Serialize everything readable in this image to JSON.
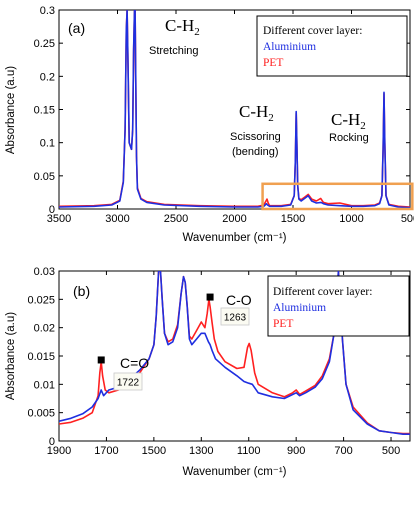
{
  "colors": {
    "aluminium": "#1f2fe0",
    "pet": "#ff2020",
    "highlight": "#f0a050",
    "axis": "#000000"
  },
  "chart_data": [
    {
      "panel": "(a)",
      "type": "line",
      "xlabel": "Wavenumber (cm⁻¹)",
      "ylabel": "Absorbance (a.u)",
      "x_reversed": true,
      "xlim": [
        3500,
        500
      ],
      "ylim": [
        0,
        0.3
      ],
      "xticks": [
        3500,
        3000,
        2500,
        2000,
        1500,
        1000,
        500
      ],
      "xtick_labels": [
        "3500",
        "3000",
        "2500",
        "2000",
        "1500",
        "1000",
        "500"
      ],
      "yticks": [
        0,
        0.05,
        0.1,
        0.15,
        0.2,
        0.25,
        0.3
      ],
      "ytick_labels": [
        "0",
        "0.05",
        "0.1",
        "0.15",
        "0.2",
        "0.25",
        "0.3"
      ],
      "legend": {
        "title": "Different cover layer:",
        "position": "top-right"
      },
      "series": [
        {
          "name": "Aluminium",
          "color": "#1f2fe0",
          "x": [
            3500,
            3200,
            3050,
            2980,
            2950,
            2935,
            2925,
            2918,
            2910,
            2900,
            2880,
            2870,
            2862,
            2855,
            2850,
            2845,
            2838,
            2830,
            2800,
            2750,
            2600,
            2300,
            2000,
            1800,
            1750,
            1738,
            1728,
            1718,
            1700,
            1600,
            1520,
            1490,
            1480,
            1473,
            1466,
            1460,
            1450,
            1430,
            1400,
            1370,
            1340,
            1300,
            1260,
            1240,
            1200,
            1100,
            1000,
            900,
            800,
            760,
            740,
            730,
            722,
            715,
            705,
            680,
            600,
            500
          ],
          "y": [
            0.003,
            0.004,
            0.006,
            0.012,
            0.04,
            0.12,
            0.27,
            0.3,
            0.22,
            0.1,
            0.09,
            0.12,
            0.24,
            0.3,
            0.3,
            0.22,
            0.08,
            0.03,
            0.015,
            0.01,
            0.006,
            0.004,
            0.003,
            0.003,
            0.004,
            0.006,
            0.008,
            0.006,
            0.004,
            0.004,
            0.006,
            0.02,
            0.07,
            0.147,
            0.09,
            0.035,
            0.015,
            0.012,
            0.016,
            0.02,
            0.012,
            0.009,
            0.01,
            0.008,
            0.006,
            0.005,
            0.004,
            0.004,
            0.005,
            0.008,
            0.02,
            0.09,
            0.176,
            0.1,
            0.02,
            0.006,
            0.003,
            0.002
          ]
        },
        {
          "name": "PET",
          "color": "#ff2020",
          "x": [
            3500,
            3200,
            3050,
            2980,
            2950,
            2935,
            2925,
            2918,
            2910,
            2900,
            2880,
            2870,
            2862,
            2855,
            2850,
            2845,
            2838,
            2830,
            2800,
            2750,
            2600,
            2300,
            2000,
            1800,
            1750,
            1738,
            1722,
            1712,
            1700,
            1600,
            1520,
            1490,
            1480,
            1473,
            1466,
            1460,
            1450,
            1430,
            1400,
            1370,
            1340,
            1300,
            1263,
            1240,
            1200,
            1100,
            1000,
            900,
            800,
            760,
            740,
            730,
            722,
            715,
            705,
            680,
            600,
            500
          ],
          "y": [
            0.004,
            0.005,
            0.007,
            0.013,
            0.042,
            0.12,
            0.27,
            0.3,
            0.22,
            0.1,
            0.09,
            0.12,
            0.235,
            0.3,
            0.3,
            0.22,
            0.08,
            0.032,
            0.016,
            0.011,
            0.007,
            0.005,
            0.004,
            0.004,
            0.006,
            0.01,
            0.015,
            0.009,
            0.005,
            0.005,
            0.007,
            0.02,
            0.07,
            0.145,
            0.09,
            0.036,
            0.016,
            0.014,
            0.018,
            0.022,
            0.015,
            0.012,
            0.016,
            0.01,
            0.008,
            0.009,
            0.005,
            0.005,
            0.006,
            0.009,
            0.02,
            0.09,
            0.174,
            0.1,
            0.02,
            0.007,
            0.004,
            0.003
          ]
        }
      ],
      "annotations": {
        "stretch_title": "C-H",
        "stretch_sub": "2",
        "stretch_label": "Stretching",
        "scissor_title": "C-H",
        "scissor_sub": "2",
        "scissor_label1": "Scissoring",
        "scissor_label2": "(bending)",
        "rock_title": "C-H",
        "rock_sub": "2",
        "rock_label": "Rocking",
        "highlight_box_x": [
          1760,
          480
        ],
        "highlight_box_y": [
          0,
          0.038
        ]
      }
    },
    {
      "panel": "(b)",
      "type": "line",
      "xlabel": "Wavenumber (cm⁻¹)",
      "ylabel": "Absorbance (a.u)",
      "x_reversed": true,
      "xlim": [
        1900,
        420
      ],
      "ylim": [
        0,
        0.03
      ],
      "xticks": [
        1900,
        1700,
        1500,
        1300,
        1100,
        900,
        700,
        500
      ],
      "xtick_labels": [
        "1900",
        "1700",
        "1500",
        "1300",
        "1100",
        "900",
        "700",
        "500"
      ],
      "yticks": [
        0,
        0.005,
        0.01,
        0.015,
        0.02,
        0.025,
        0.03
      ],
      "ytick_labels": [
        "0",
        "0.005",
        "0.01",
        "0.015",
        "0.02",
        "0.025",
        "0.03"
      ],
      "legend": {
        "title": "Different cover layer:",
        "position": "top-right"
      },
      "series": [
        {
          "name": "Aluminium",
          "color": "#1f2fe0",
          "x": [
            1900,
            1850,
            1800,
            1760,
            1735,
            1722,
            1712,
            1690,
            1650,
            1600,
            1560,
            1520,
            1500,
            1490,
            1480,
            1472,
            1465,
            1455,
            1440,
            1420,
            1400,
            1385,
            1375,
            1368,
            1360,
            1350,
            1340,
            1320,
            1300,
            1285,
            1270,
            1263,
            1255,
            1240,
            1200,
            1150,
            1120,
            1100,
            1085,
            1060,
            1000,
            950,
            915,
            900,
            885,
            860,
            820,
            790,
            760,
            740,
            730,
            722,
            715,
            705,
            690,
            660,
            600,
            550,
            500,
            450,
            420
          ],
          "y": [
            0.0035,
            0.004,
            0.0048,
            0.006,
            0.0075,
            0.009,
            0.008,
            0.009,
            0.0095,
            0.011,
            0.0125,
            0.0145,
            0.017,
            0.022,
            0.03,
            0.03,
            0.025,
            0.019,
            0.017,
            0.0175,
            0.02,
            0.026,
            0.029,
            0.028,
            0.024,
            0.018,
            0.017,
            0.018,
            0.019,
            0.019,
            0.0175,
            0.017,
            0.016,
            0.0145,
            0.013,
            0.0115,
            0.0105,
            0.0102,
            0.01,
            0.0085,
            0.0078,
            0.0075,
            0.0082,
            0.0085,
            0.008,
            0.0085,
            0.0095,
            0.011,
            0.014,
            0.019,
            0.024,
            0.03,
            0.025,
            0.018,
            0.01,
            0.0055,
            0.003,
            0.0018,
            0.0015,
            0.0012,
            0.0012
          ]
        },
        {
          "name": "PET",
          "color": "#ff2020",
          "x": [
            1900,
            1850,
            1800,
            1760,
            1735,
            1728,
            1722,
            1716,
            1705,
            1690,
            1650,
            1600,
            1560,
            1520,
            1500,
            1490,
            1480,
            1472,
            1465,
            1455,
            1440,
            1420,
            1400,
            1385,
            1375,
            1368,
            1360,
            1350,
            1340,
            1320,
            1300,
            1285,
            1275,
            1268,
            1263,
            1255,
            1245,
            1230,
            1200,
            1150,
            1120,
            1105,
            1098,
            1090,
            1075,
            1060,
            1000,
            950,
            915,
            900,
            885,
            860,
            820,
            790,
            760,
            740,
            730,
            722,
            715,
            705,
            690,
            660,
            600,
            550,
            500,
            450,
            420
          ],
          "y": [
            0.003,
            0.0033,
            0.004,
            0.005,
            0.008,
            0.012,
            0.014,
            0.0115,
            0.009,
            0.0085,
            0.009,
            0.0105,
            0.012,
            0.0145,
            0.017,
            0.022,
            0.03,
            0.03,
            0.025,
            0.019,
            0.0175,
            0.018,
            0.0205,
            0.026,
            0.029,
            0.028,
            0.024,
            0.0185,
            0.018,
            0.0195,
            0.021,
            0.02,
            0.0225,
            0.025,
            0.0237,
            0.021,
            0.018,
            0.0158,
            0.014,
            0.0128,
            0.013,
            0.0165,
            0.0172,
            0.016,
            0.012,
            0.01,
            0.0085,
            0.0078,
            0.0085,
            0.009,
            0.0082,
            0.0088,
            0.0098,
            0.0115,
            0.0145,
            0.019,
            0.024,
            0.03,
            0.025,
            0.018,
            0.01,
            0.006,
            0.0032,
            0.0018,
            0.0015,
            0.0013,
            0.0013
          ]
        }
      ],
      "annotations": {
        "co_double_label": "C=O",
        "co_double_value": "1722",
        "co_double_point": [
          1722,
          0.0143
        ],
        "co_single_label": "C-O",
        "co_single_value": "1263",
        "co_single_point": [
          1263,
          0.0254
        ]
      }
    }
  ]
}
